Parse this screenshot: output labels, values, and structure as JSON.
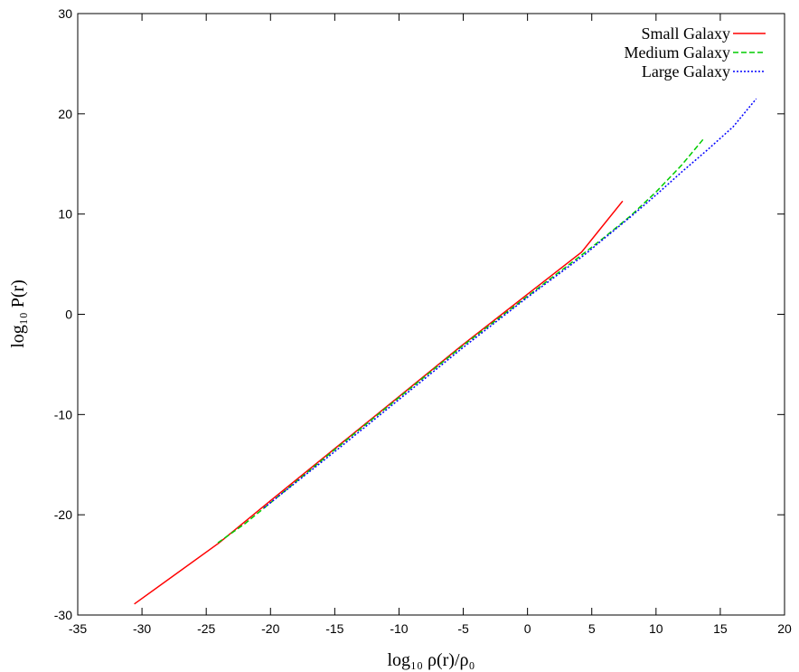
{
  "chart_data": {
    "type": "line",
    "xlabel": "log₁₀ ρ(r)/ρ₀",
    "ylabel": "log₁₀ P(r)",
    "xlim": [
      -35,
      20
    ],
    "ylim": [
      -30,
      30
    ],
    "xticks": [
      -35,
      -30,
      -25,
      -20,
      -15,
      -10,
      -5,
      0,
      5,
      10,
      15,
      20
    ],
    "yticks": [
      -30,
      -20,
      -10,
      0,
      10,
      20,
      30
    ],
    "grid": false,
    "legend_position": "top-right",
    "series": [
      {
        "name": "Small Galaxy",
        "color": "#ff0000",
        "style": "solid",
        "x": [
          -30.6,
          -24,
          -20,
          -15,
          -10,
          -5,
          0,
          4.2,
          7.4
        ],
        "y": [
          -28.9,
          -22.8,
          -18.6,
          -13.4,
          -8.2,
          -3.0,
          2.0,
          6.2,
          11.3
        ]
      },
      {
        "name": "Medium Galaxy",
        "color": "#00cc00",
        "style": "dashed",
        "x": [
          -24.1,
          -22,
          -20,
          -15,
          -10,
          -5,
          0,
          4.4,
          6,
          8,
          10,
          12,
          13.7
        ],
        "y": [
          -22.8,
          -20.9,
          -18.8,
          -13.5,
          -8.3,
          -3.1,
          1.8,
          6.1,
          7.7,
          9.8,
          12.2,
          14.9,
          17.5
        ]
      },
      {
        "name": "Large Galaxy",
        "color": "#0000ff",
        "style": "dotted",
        "x": [
          -20.5,
          -15,
          -10,
          -5,
          0,
          4.4,
          6,
          8,
          10,
          12,
          14,
          16,
          17.8
        ],
        "y": [
          -19.3,
          -13.7,
          -8.5,
          -3.3,
          1.7,
          5.9,
          7.6,
          9.7,
          11.9,
          14.2,
          16.4,
          18.7,
          21.5
        ]
      }
    ]
  }
}
